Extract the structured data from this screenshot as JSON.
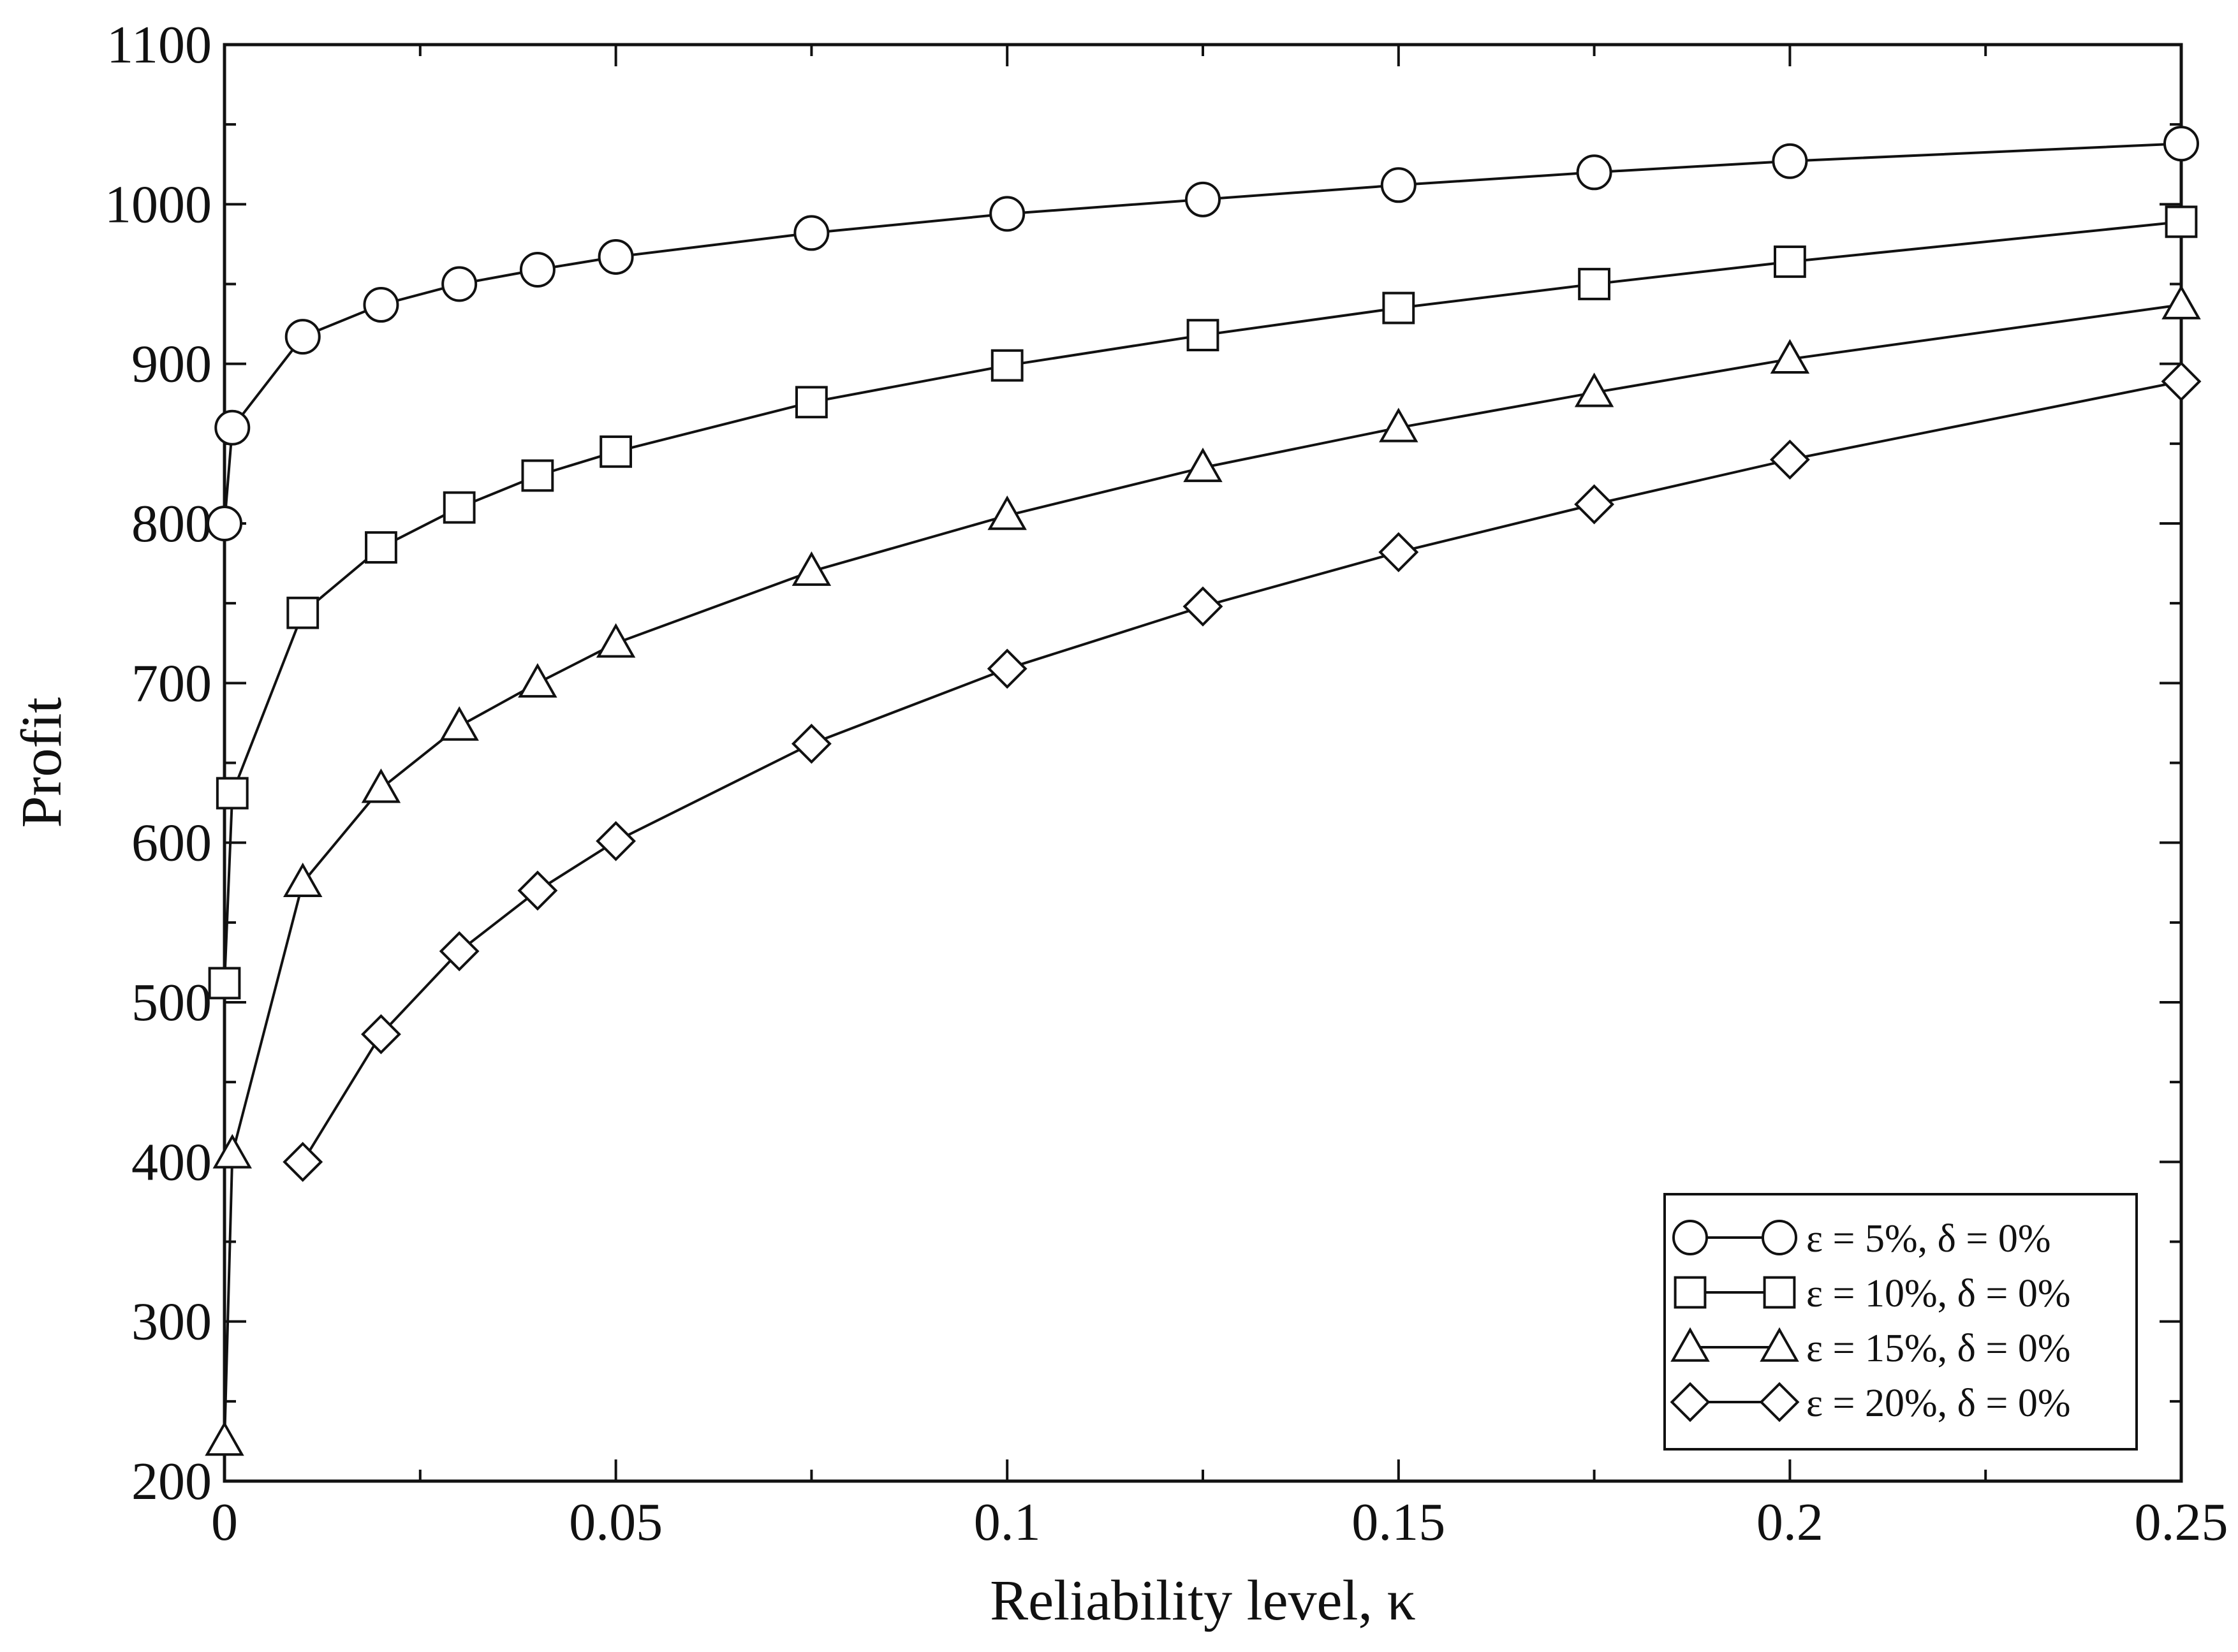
{
  "chart_data": {
    "type": "line",
    "xlabel": "Reliability level, κ",
    "ylabel": "Profit",
    "xlim": [
      0,
      0.25
    ],
    "ylim": [
      200,
      1100
    ],
    "x_major_ticks": [
      0,
      0.05,
      0.1,
      0.15,
      0.2,
      0.25
    ],
    "x_tick_labels": [
      "0",
      "0.05",
      "0.1",
      "0.15",
      "0.2",
      "0.25"
    ],
    "x_minor_step": 0.025,
    "y_major_ticks": [
      200,
      300,
      400,
      500,
      600,
      700,
      800,
      900,
      1000,
      1100
    ],
    "y_tick_labels": [
      "200",
      "300",
      "400",
      "500",
      "600",
      "700",
      "800",
      "900",
      "1000",
      "1100"
    ],
    "y_minor_step": 50,
    "grid": false,
    "legend_position": "bottom-right",
    "series": [
      {
        "name": "ε = 5%, δ = 0%",
        "marker": "circle",
        "points": [
          [
            0,
            800
          ],
          [
            0.001,
            860
          ],
          [
            0.01,
            917
          ],
          [
            0.02,
            937
          ],
          [
            0.03,
            950
          ],
          [
            0.04,
            959
          ],
          [
            0.05,
            967
          ],
          [
            0.075,
            982
          ],
          [
            0.1,
            994
          ],
          [
            0.125,
            1003
          ],
          [
            0.15,
            1012
          ],
          [
            0.175,
            1020
          ],
          [
            0.2,
            1027
          ],
          [
            0.25,
            1038
          ]
        ]
      },
      {
        "name": "ε = 10%, δ = 0%",
        "marker": "square",
        "points": [
          [
            0,
            512
          ],
          [
            0.001,
            631
          ],
          [
            0.01,
            744
          ],
          [
            0.02,
            785
          ],
          [
            0.03,
            810
          ],
          [
            0.04,
            830
          ],
          [
            0.05,
            845
          ],
          [
            0.075,
            876
          ],
          [
            0.1,
            899
          ],
          [
            0.125,
            918
          ],
          [
            0.15,
            935
          ],
          [
            0.175,
            950
          ],
          [
            0.2,
            964
          ],
          [
            0.25,
            989
          ]
        ]
      },
      {
        "name": "ε = 15%, δ = 0%",
        "marker": "triangle",
        "points": [
          [
            0,
            225
          ],
          [
            0.001,
            405
          ],
          [
            0.01,
            575
          ],
          [
            0.02,
            634
          ],
          [
            0.03,
            673
          ],
          [
            0.04,
            700
          ],
          [
            0.05,
            725
          ],
          [
            0.075,
            770
          ],
          [
            0.1,
            805
          ],
          [
            0.125,
            835
          ],
          [
            0.15,
            860
          ],
          [
            0.175,
            882
          ],
          [
            0.2,
            903
          ],
          [
            0.25,
            937
          ]
        ]
      },
      {
        "name": "ε = 20%, δ = 0%",
        "marker": "diamond",
        "points": [
          [
            0.01,
            400
          ],
          [
            0.02,
            480
          ],
          [
            0.03,
            532
          ],
          [
            0.04,
            570
          ],
          [
            0.05,
            601
          ],
          [
            0.075,
            662
          ],
          [
            0.1,
            709
          ],
          [
            0.125,
            748
          ],
          [
            0.15,
            782
          ],
          [
            0.175,
            812
          ],
          [
            0.2,
            840
          ],
          [
            0.25,
            889
          ]
        ]
      }
    ]
  }
}
